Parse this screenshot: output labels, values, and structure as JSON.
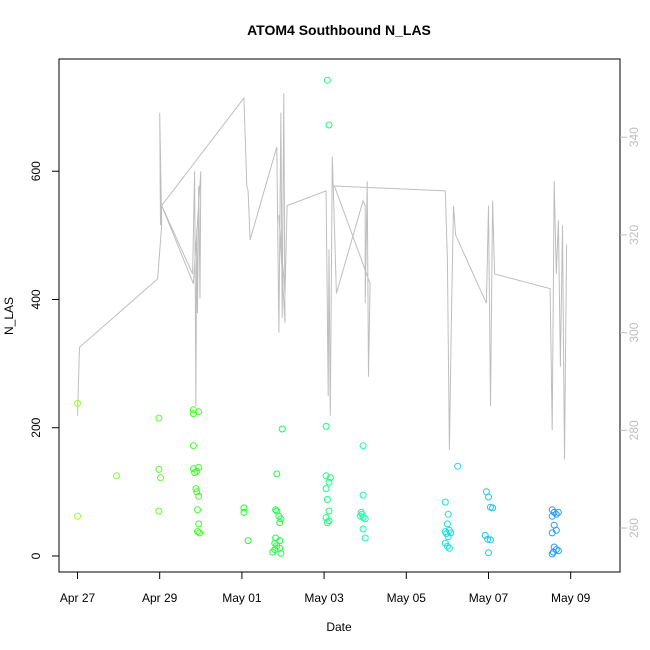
{
  "chart_data": {
    "type": "scatter",
    "title": "ATOM4 Southbound N_LAS",
    "xlabel": "Date",
    "ylabel": "N_LAS",
    "x_tick_labels": [
      "Apr 27",
      "Apr 29",
      "May 01",
      "May 03",
      "May 05",
      "May 07",
      "May 09"
    ],
    "x_tick_days": [
      0,
      2,
      4,
      6,
      8,
      10,
      12
    ],
    "xlim_days": [
      -0.45,
      13.2
    ],
    "ylim": [
      -25,
      775
    ],
    "y_ticks": [
      0,
      200,
      400,
      600
    ],
    "y2lim": [
      251,
      356
    ],
    "y2_ticks": [
      260,
      280,
      300,
      320,
      340
    ],
    "grid": false,
    "legend": "none",
    "point_colors": {
      "start": "#99ff33",
      "mid1": "#22ff22",
      "mid2": "#11ffcc",
      "end": "#2a9aff"
    },
    "line_color": "#bebebe",
    "series": [
      {
        "kind": "points",
        "points": [
          [
            0.0,
            62
          ],
          [
            0.0,
            238
          ],
          [
            0.95,
            125
          ],
          [
            1.98,
            215
          ],
          [
            1.98,
            135
          ],
          [
            2.02,
            122
          ],
          [
            1.98,
            70
          ],
          [
            2.82,
            228
          ],
          [
            2.82,
            222
          ],
          [
            2.95,
            225
          ],
          [
            2.82,
            136
          ],
          [
            2.9,
            132
          ],
          [
            2.95,
            138
          ],
          [
            2.85,
            130
          ],
          [
            2.82,
            172
          ],
          [
            2.88,
            105
          ],
          [
            2.9,
            100
          ],
          [
            2.95,
            93
          ],
          [
            2.92,
            72
          ],
          [
            2.95,
            50
          ],
          [
            2.92,
            38
          ],
          [
            2.97,
            36
          ],
          [
            4.05,
            75
          ],
          [
            4.05,
            68
          ],
          [
            4.15,
            24
          ],
          [
            4.85,
            128
          ],
          [
            4.82,
            72
          ],
          [
            4.85,
            70
          ],
          [
            4.9,
            62
          ],
          [
            4.95,
            58
          ],
          [
            4.92,
            52
          ],
          [
            4.82,
            28
          ],
          [
            4.8,
            20
          ],
          [
            4.85,
            16
          ],
          [
            4.92,
            24
          ],
          [
            4.8,
            10
          ],
          [
            4.75,
            6
          ],
          [
            4.92,
            12
          ],
          [
            4.95,
            4
          ],
          [
            4.98,
            198
          ],
          [
            6.08,
            742
          ],
          [
            6.12,
            672
          ],
          [
            6.05,
            202
          ],
          [
            6.05,
            125
          ],
          [
            6.15,
            122
          ],
          [
            6.12,
            115
          ],
          [
            6.05,
            105
          ],
          [
            6.08,
            88
          ],
          [
            6.12,
            70
          ],
          [
            6.05,
            60
          ],
          [
            6.08,
            52
          ],
          [
            6.12,
            55
          ],
          [
            6.95,
            172
          ],
          [
            6.95,
            95
          ],
          [
            6.9,
            68
          ],
          [
            6.92,
            65
          ],
          [
            6.95,
            60
          ],
          [
            7.0,
            58
          ],
          [
            6.88,
            62
          ],
          [
            6.95,
            42
          ],
          [
            7.0,
            28
          ],
          [
            8.95,
            84
          ],
          [
            9.02,
            65
          ],
          [
            9.0,
            50
          ],
          [
            8.95,
            38
          ],
          [
            8.98,
            35
          ],
          [
            9.05,
            40
          ],
          [
            9.08,
            36
          ],
          [
            9.02,
            30
          ],
          [
            8.95,
            20
          ],
          [
            9.0,
            15
          ],
          [
            9.05,
            12
          ],
          [
            9.25,
            140
          ],
          [
            9.95,
            100
          ],
          [
            10.0,
            92
          ],
          [
            10.05,
            76
          ],
          [
            10.1,
            75
          ],
          [
            9.92,
            32
          ],
          [
            9.98,
            26
          ],
          [
            10.05,
            25
          ],
          [
            10.0,
            5
          ],
          [
            11.55,
            72
          ],
          [
            11.6,
            68
          ],
          [
            11.65,
            65
          ],
          [
            11.7,
            68
          ],
          [
            11.55,
            62
          ],
          [
            11.6,
            48
          ],
          [
            11.65,
            40
          ],
          [
            11.55,
            36
          ],
          [
            11.6,
            14
          ],
          [
            11.65,
            10
          ],
          [
            11.7,
            8
          ],
          [
            11.58,
            6
          ],
          [
            11.55,
            3
          ]
        ]
      },
      {
        "kind": "line",
        "axis": "right",
        "points": [
          [
            0.0,
            283
          ],
          [
            0.05,
            297
          ],
          [
            1.95,
            311
          ],
          [
            2.05,
            322
          ],
          [
            2.0,
            345
          ],
          [
            2.02,
            322
          ],
          [
            2.05,
            326
          ],
          [
            2.8,
            312
          ],
          [
            2.85,
            333
          ],
          [
            2.88,
            285
          ],
          [
            2.9,
            321
          ],
          [
            2.92,
            304
          ],
          [
            2.95,
            330
          ],
          [
            2.98,
            307
          ],
          [
            3.0,
            333
          ],
          [
            2.82,
            310
          ],
          [
            2.05,
            326
          ],
          [
            4.05,
            348
          ],
          [
            4.1,
            335
          ],
          [
            4.12,
            330
          ],
          [
            4.15,
            329
          ],
          [
            4.2,
            319
          ],
          [
            4.85,
            338
          ],
          [
            4.9,
            300
          ],
          [
            4.95,
            345
          ],
          [
            4.98,
            303
          ],
          [
            5.02,
            349
          ],
          [
            5.05,
            302
          ],
          [
            4.9,
            324
          ],
          [
            5.05,
            308
          ],
          [
            5.1,
            326
          ],
          [
            6.05,
            329
          ],
          [
            6.1,
            287
          ],
          [
            6.12,
            317
          ],
          [
            6.15,
            283
          ],
          [
            6.2,
            336
          ],
          [
            6.25,
            322
          ],
          [
            6.3,
            308
          ],
          [
            6.95,
            327
          ],
          [
            7.0,
            326
          ],
          [
            7.0,
            306
          ],
          [
            7.05,
            331
          ],
          [
            7.08,
            291
          ],
          [
            7.12,
            310
          ],
          [
            6.95,
            314
          ],
          [
            6.25,
            330
          ],
          [
            8.95,
            329
          ],
          [
            9.0,
            315
          ],
          [
            9.05,
            276
          ],
          [
            9.1,
            304
          ],
          [
            9.15,
            326
          ],
          [
            9.2,
            320
          ],
          [
            9.95,
            306
          ],
          [
            10.0,
            326
          ],
          [
            10.05,
            285
          ],
          [
            10.1,
            327
          ],
          [
            10.15,
            312
          ],
          [
            11.5,
            309
          ],
          [
            11.55,
            280
          ],
          [
            11.6,
            331
          ],
          [
            11.65,
            312
          ],
          [
            11.7,
            323
          ],
          [
            11.75,
            293
          ],
          [
            11.8,
            322
          ],
          [
            11.85,
            274
          ],
          [
            11.9,
            318
          ]
        ]
      }
    ]
  }
}
